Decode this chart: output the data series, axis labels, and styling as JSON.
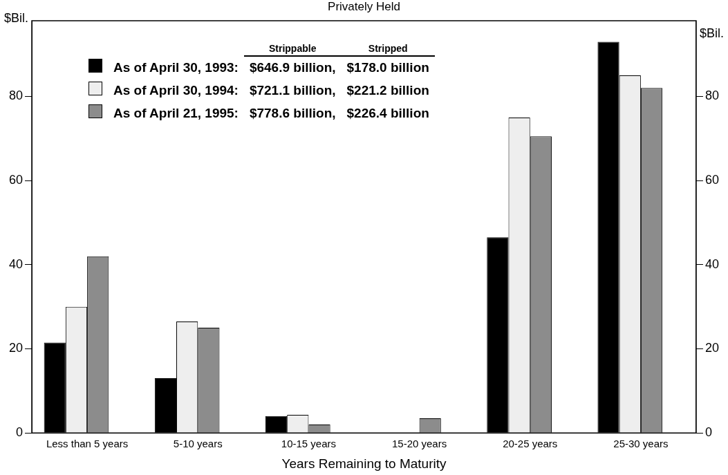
{
  "chart_data": {
    "type": "bar",
    "title": "Privately Held",
    "xlabel": "Years Remaining to Maturity",
    "ylabel": "$Bil.",
    "y2label": "$Bil.",
    "categories": [
      "Less than 5 years",
      "5-10 years",
      "10-15 years",
      "15-20 years",
      "20-25 years",
      "25-30 years"
    ],
    "series": [
      {
        "name": "As of April 30, 1993:",
        "color": "#000000",
        "values": [
          21.5,
          13,
          4,
          0,
          46.5,
          93
        ]
      },
      {
        "name": "As of April 30, 1994:",
        "color": "#eeeeee",
        "values": [
          30,
          26.5,
          4.3,
          0,
          75,
          85
        ]
      },
      {
        "name": "As of April 21, 1995:",
        "color": "#8c8c8c",
        "values": [
          42,
          25,
          2,
          3.5,
          70.5,
          82
        ]
      }
    ],
    "annotations": [
      "Strippable",
      "Stripped",
      "$646.9 billion,",
      "$178.0 billion",
      "$721.1 billion,",
      "$221.2 billion",
      "$778.6 billion,",
      "$226.4 billion"
    ],
    "ylim": [
      0,
      98
    ],
    "yticks": [
      0,
      20,
      40,
      60,
      80
    ],
    "y2lim": [
      0,
      98
    ],
    "y2ticks": [
      0,
      20,
      40,
      60,
      80
    ],
    "grid": false,
    "legend": "top left"
  }
}
